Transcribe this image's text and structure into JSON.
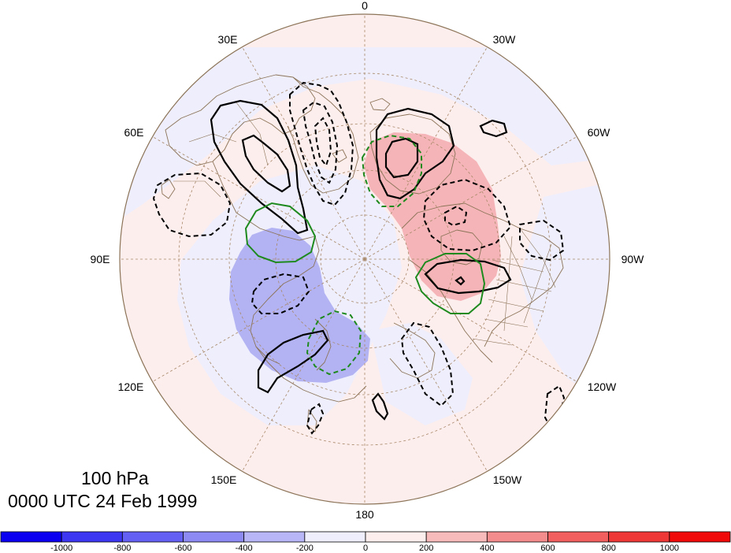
{
  "title": {
    "level": "100 hPa",
    "time": "0000 UTC 24 Feb 1999"
  },
  "longitude_labels": {
    "lon_0": "0",
    "lon_30w": "30W",
    "lon_60w": "60W",
    "lon_90w": "90W",
    "lon_120w": "120W",
    "lon_150w": "150W",
    "lon_180": "180",
    "lon_150e": "150E",
    "lon_120e": "120E",
    "lon_90e": "90E",
    "lon_60e": "60E",
    "lon_30e": "30E"
  },
  "colorbar": {
    "ticks": [
      "-1000",
      "-800",
      "-600",
      "-400",
      "-200",
      "0",
      "200",
      "400",
      "600",
      "800",
      "1000"
    ],
    "colors": [
      "#0c00f0",
      "#3d37f2",
      "#6460f3",
      "#8d8af4",
      "#b8b6f7",
      "#eeeefc",
      "#fdeeee",
      "#f8bbbb",
      "#f38c8c",
      "#f15f5f",
      "#ee3838",
      "#f00a0a"
    ]
  },
  "colors": {
    "coast": "#8c7458",
    "grid": "#a88868",
    "negative_fill": "#b3b3f4",
    "positive_fill": "#f5b5b8",
    "light_negative": "#eeeefc",
    "light_positive": "#fdeeee",
    "contour_black": "#000000",
    "contour_green": "#1e8a1e"
  }
}
